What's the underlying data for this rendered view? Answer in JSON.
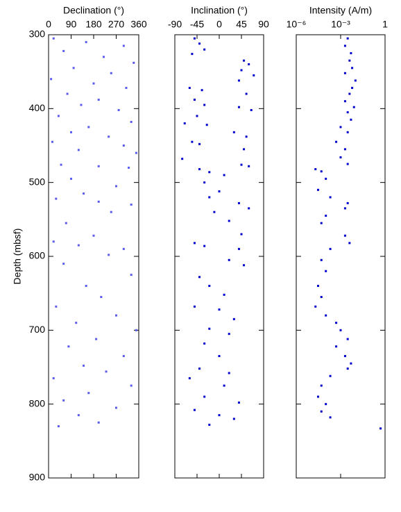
{
  "chart_data": [
    {
      "type": "scatter",
      "xlabel": "Declination (°)",
      "ylabel": "Depth (mbsf)",
      "color": "#5a5aee",
      "xlim": [
        0,
        360
      ],
      "xticks": [
        0,
        90,
        180,
        270,
        360
      ],
      "ylim": [
        300,
        900
      ],
      "yticks": [
        300,
        400,
        500,
        600,
        700,
        800,
        900
      ],
      "y_inverted": true,
      "x": [
        20,
        150,
        300,
        60,
        220,
        340,
        100,
        250,
        10,
        180,
        310,
        75,
        200,
        130,
        280,
        40,
        330,
        160,
        90,
        240,
        15,
        300,
        120,
        350,
        50,
        200,
        320,
        90,
        270,
        140,
        30,
        200,
        330,
        250,
        70,
        180,
        20,
        120,
        300,
        240,
        60,
        330,
        150,
        210,
        30,
        270,
        110,
        350,
        190,
        80,
        300,
        140,
        230,
        20,
        330,
        160,
        60,
        270,
        120,
        200,
        40
      ],
      "y": [
        305,
        310,
        315,
        322,
        330,
        338,
        345,
        352,
        360,
        366,
        372,
        380,
        388,
        395,
        402,
        410,
        418,
        425,
        432,
        438,
        445,
        450,
        456,
        460,
        476,
        478,
        480,
        495,
        505,
        515,
        522,
        526,
        530,
        540,
        555,
        572,
        580,
        585,
        590,
        598,
        610,
        625,
        640,
        655,
        668,
        680,
        690,
        700,
        712,
        722,
        735,
        748,
        756,
        765,
        775,
        785,
        795,
        805,
        815,
        825,
        830
      ]
    },
    {
      "type": "scatter",
      "xlabel": "Inclination (°)",
      "color": "#0000cc",
      "xlim": [
        -90,
        90
      ],
      "xticks": [
        -90,
        -45,
        0,
        45,
        90
      ],
      "ylim": [
        300,
        900
      ],
      "yticks": [
        300,
        400,
        500,
        600,
        700,
        800,
        900
      ],
      "y_inverted": true,
      "x": [
        -50,
        -40,
        -30,
        -55,
        50,
        60,
        45,
        70,
        40,
        -60,
        -35,
        55,
        -50,
        -30,
        40,
        65,
        -45,
        -70,
        -25,
        30,
        55,
        -55,
        -40,
        50,
        -75,
        45,
        60,
        -40,
        -20,
        10,
        -30,
        0,
        -20,
        40,
        60,
        -10,
        20,
        45,
        -50,
        -30,
        40,
        20,
        50,
        -40,
        -20,
        10,
        -50,
        0,
        30,
        -20,
        20,
        -30,
        0,
        -40,
        20,
        -60,
        10,
        -30,
        40,
        -50,
        0,
        30,
        -20
      ],
      "y": [
        305,
        312,
        320,
        326,
        335,
        340,
        348,
        355,
        362,
        372,
        375,
        380,
        388,
        395,
        398,
        402,
        410,
        420,
        422,
        432,
        438,
        445,
        448,
        455,
        468,
        476,
        478,
        482,
        486,
        490,
        500,
        512,
        520,
        528,
        535,
        540,
        552,
        570,
        582,
        586,
        590,
        605,
        612,
        628,
        640,
        652,
        668,
        672,
        685,
        698,
        705,
        718,
        735,
        752,
        758,
        765,
        775,
        790,
        798,
        808,
        815,
        820,
        828
      ]
    },
    {
      "type": "scatter",
      "xlabel": "Intensity (A/m)",
      "color": "#0000cc",
      "log_x": true,
      "xlim": [
        1e-06,
        1
      ],
      "xticks": [
        {
          "value": 1e-06,
          "label": "10⁻⁶"
        },
        {
          "value": 0.001,
          "label": "10⁻³"
        },
        1
      ],
      "ylim": [
        300,
        900
      ],
      "yticks": [
        300,
        400,
        500,
        600,
        700,
        800,
        900
      ],
      "y_inverted": true,
      "x": [
        0.003,
        0.002,
        0.005,
        0.004,
        0.006,
        0.002,
        0.01,
        0.006,
        0.004,
        0.002,
        0.008,
        0.003,
        0.005,
        0.001,
        0.003,
        0.0005,
        0.002,
        0.001,
        0.003,
        2e-05,
        5e-05,
        0.0001,
        3e-05,
        0.0002,
        0.003,
        0.002,
        0.0001,
        5e-05,
        0.002,
        0.004,
        0.0002,
        5e-05,
        0.0001,
        3e-05,
        5e-05,
        2e-05,
        0.0001,
        0.0005,
        0.001,
        0.003,
        0.0005,
        0.002,
        0.005,
        0.003,
        0.0002,
        5e-05,
        3e-05,
        0.0001,
        5e-05,
        0.0002,
        0.5
      ],
      "y": [
        305,
        315,
        325,
        335,
        345,
        352,
        362,
        372,
        380,
        390,
        398,
        405,
        415,
        425,
        432,
        445,
        455,
        466,
        475,
        482,
        485,
        495,
        510,
        520,
        528,
        535,
        545,
        555,
        572,
        582,
        590,
        605,
        620,
        640,
        655,
        668,
        680,
        690,
        700,
        712,
        722,
        735,
        745,
        752,
        762,
        775,
        790,
        800,
        810,
        818,
        833
      ]
    }
  ]
}
